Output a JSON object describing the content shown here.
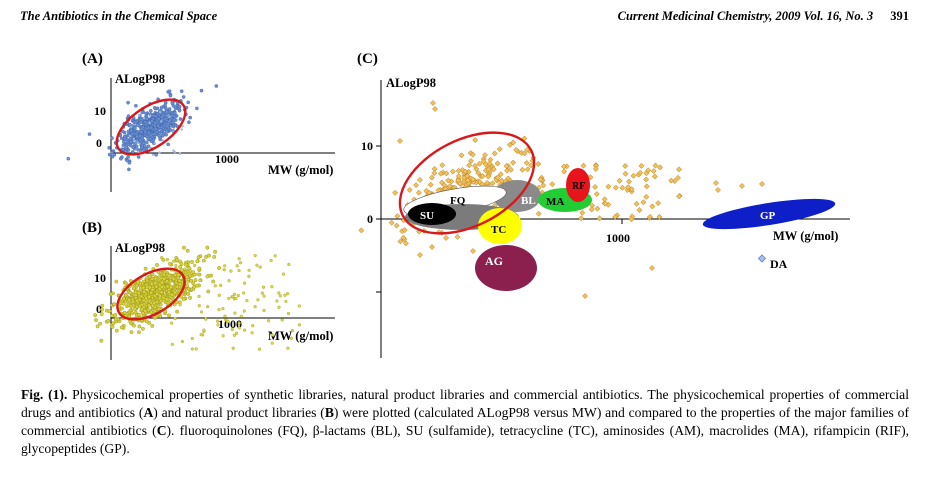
{
  "header": {
    "left": "The Antibiotics in the Chemical Space",
    "journal": "Current Medicinal Chemistry,",
    "volume": "2009 Vol. 16, No. 3",
    "page": "391"
  },
  "panels": {
    "a": {
      "label": "(A)",
      "ylabel": "ALogP98",
      "xlabel": "MW (g/mol)",
      "ticks": [
        "10",
        "0",
        "1000"
      ]
    },
    "b": {
      "label": "(B)",
      "ylabel": "ALogP98",
      "xlabel": "MW (g/mol)",
      "ticks": [
        "10",
        "0",
        "1000"
      ]
    },
    "c": {
      "label": "(C)",
      "ylabel": "ALogP98",
      "xlabel": "MW (g/mol)",
      "ticks": [
        "10",
        "0",
        "1000"
      ]
    }
  },
  "families": {
    "fq": "FQ",
    "su": "SU",
    "bl": "BL",
    "tc": "TC",
    "ma": "MA",
    "rf": "RF",
    "ag": "AG",
    "gp": "GP",
    "da": "DA"
  },
  "colors": {
    "drugs_blue": "#5b7fc4",
    "natural_yellow": "#c9c42a",
    "antibiotic_gold": "#d9a032",
    "ellipse_red": "#d7191c",
    "ag": "#8b1f4e",
    "gp": "#0f1fc8",
    "ma": "#22cc33",
    "tc": "#ffff00",
    "bl": "#8a8a8a"
  },
  "caption": {
    "fig": "Fig. (1).",
    "p1": " Physicochemical properties of synthetic libraries, natural product libraries and commercial antibiotics. The physicochemical properties of commercial drugs and antibiotics (",
    "A": "A",
    "p2": ") and natural product libraries (",
    "B": "B",
    "p3": ") were plotted (calculated ALogP98 versus MW) and compared to the properties of the major families of commercial antibiotics (",
    "C": "C",
    "p4": "). fluoroquinolones (FQ), β-lactams (BL), SU (sulfamide), tetracycline (TC), aminosides (AM), macrolides (MA), rifampicin (RIF), glycopeptides (GP)."
  }
}
